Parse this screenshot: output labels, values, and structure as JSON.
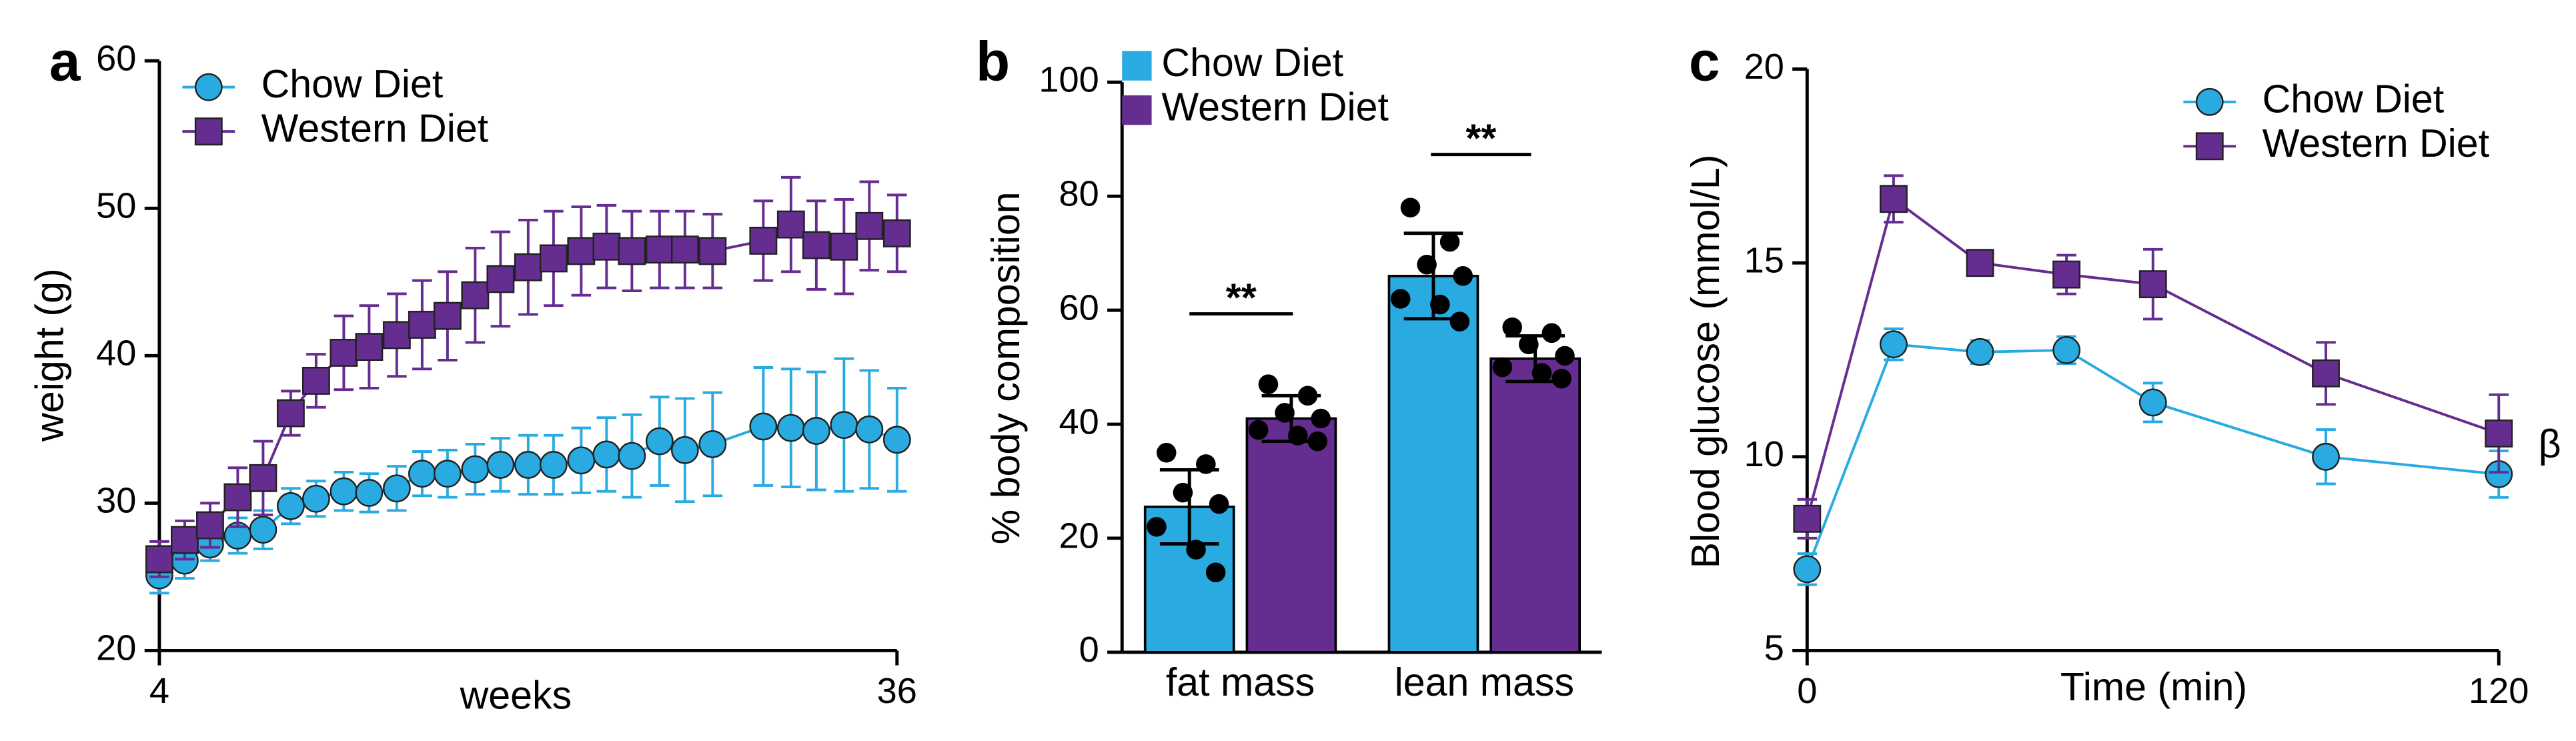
{
  "chart_data": [
    {
      "type": "line",
      "panel_label": "a",
      "xlabel": "weeks",
      "ylabel": "weight (g)",
      "x": [
        4,
        5.1,
        6.2,
        7.4,
        8.5,
        9.7,
        10.8,
        12,
        13.1,
        14.3,
        15.4,
        16.5,
        17.7,
        18.8,
        20,
        21.1,
        22.3,
        23.4,
        24.5,
        25.7,
        26.8,
        28,
        30.2,
        31.4,
        32.5,
        33.7,
        34.8,
        36
      ],
      "xlim": [
        4,
        36
      ],
      "xticks": [
        4,
        36
      ],
      "ylim": [
        20,
        60
      ],
      "yticks": [
        20,
        30,
        40,
        50,
        60
      ],
      "series": [
        {
          "name": "Chow Diet",
          "color": "#29abe2",
          "marker": "circle",
          "values": [
            25.1,
            26.1,
            27.2,
            27.8,
            28.2,
            29.8,
            30.3,
            30.8,
            30.7,
            31.0,
            32.0,
            32.0,
            32.3,
            32.6,
            32.6,
            32.6,
            32.9,
            33.3,
            33.2,
            34.2,
            33.6,
            34.0,
            35.2,
            35.1,
            34.9,
            35.3,
            35.0,
            34.3
          ],
          "errors": [
            1.2,
            1.2,
            1.1,
            1.2,
            1.3,
            1.2,
            1.2,
            1.3,
            1.3,
            1.5,
            1.5,
            1.6,
            1.7,
            1.8,
            2.0,
            2.0,
            2.2,
            2.5,
            2.8,
            3.0,
            3.5,
            3.5,
            4.0,
            4.0,
            4.0,
            4.5,
            4.0,
            3.5
          ]
        },
        {
          "name": "Western Diet",
          "color": "#662d91",
          "marker": "square",
          "values": [
            26.2,
            27.5,
            28.5,
            30.4,
            31.7,
            36.1,
            38.3,
            40.2,
            40.6,
            41.4,
            42.1,
            42.7,
            44.1,
            45.2,
            46.0,
            46.6,
            47.1,
            47.4,
            47.1,
            47.2,
            47.2,
            47.1,
            47.8,
            48.9,
            47.5,
            47.4,
            48.8,
            48.3
          ],
          "errors": [
            1.2,
            1.3,
            1.5,
            2.0,
            2.5,
            1.5,
            1.8,
            2.5,
            2.8,
            2.8,
            3.0,
            3.0,
            3.2,
            3.2,
            3.2,
            3.2,
            3.0,
            2.8,
            2.7,
            2.6,
            2.6,
            2.5,
            2.7,
            3.2,
            3.0,
            3.2,
            3.0,
            2.6
          ]
        }
      ]
    },
    {
      "type": "bar",
      "panel_label": "b",
      "ylabel": "% body composition",
      "categories": [
        "fat mass",
        "lean mass"
      ],
      "ylim": [
        0,
        100
      ],
      "yticks": [
        0,
        20,
        40,
        60,
        80,
        100
      ],
      "annotations": [
        "**",
        "**"
      ],
      "series": [
        {
          "name": "Chow Diet",
          "color": "#29abe2",
          "values": [
            25.5,
            66
          ],
          "errors": [
            6.5,
            7.5
          ],
          "points": [
            [
              35,
              33,
              28,
              26,
              22,
              18,
              14
            ],
            [
              78,
              72,
              68,
              66,
              62,
              61,
              58
            ]
          ]
        },
        {
          "name": "Western Diet",
          "color": "#662d91",
          "values": [
            41,
            51.5
          ],
          "errors": [
            4,
            4
          ],
          "points": [
            [
              47,
              45,
              42,
              41,
              39,
              38,
              37
            ],
            [
              57,
              56,
              54,
              52,
              50,
              49,
              48
            ]
          ]
        }
      ]
    },
    {
      "type": "line",
      "panel_label": "c",
      "xlabel": "Time (min)",
      "ylabel": "Blood glucose (mmol/L)",
      "x": [
        0,
        15,
        30,
        45,
        60,
        90,
        120
      ],
      "xlim": [
        0,
        120
      ],
      "xticks": [
        0,
        120
      ],
      "ylim": [
        5,
        20
      ],
      "yticks": [
        5,
        10,
        15,
        20
      ],
      "annotations": [
        "β"
      ],
      "series": [
        {
          "name": "Chow Diet",
          "color": "#29abe2",
          "marker": "circle",
          "values": [
            7.1,
            12.9,
            12.7,
            12.75,
            11.4,
            10.0,
            9.55
          ],
          "errors": [
            0.4,
            0.4,
            0.3,
            0.35,
            0.5,
            0.7,
            0.6
          ]
        },
        {
          "name": "Western Diet",
          "color": "#662d91",
          "marker": "square",
          "values": [
            8.4,
            16.65,
            15.0,
            14.7,
            14.45,
            12.15,
            10.6
          ],
          "errors": [
            0.5,
            0.6,
            0.3,
            0.5,
            0.9,
            0.8,
            1.0
          ]
        }
      ]
    }
  ]
}
